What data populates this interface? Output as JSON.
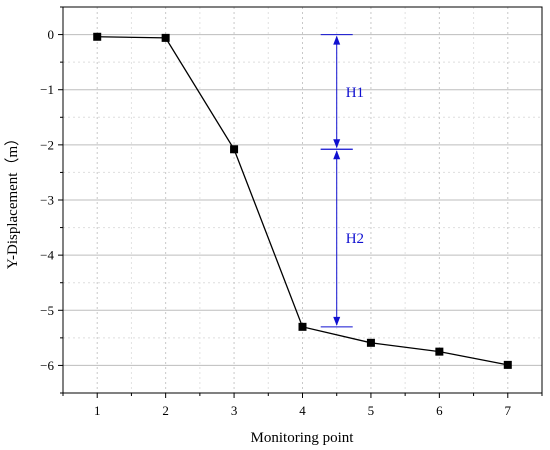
{
  "chart_data": {
    "type": "line",
    "title": "",
    "xlabel": "Monitoring point",
    "ylabel": "Y-Displacement（m）",
    "xlim": [
      0.5,
      7.5
    ],
    "ylim": [
      -6.5,
      0.5
    ],
    "x_ticks": [
      1,
      2,
      3,
      4,
      5,
      6,
      7
    ],
    "y_ticks": [
      0,
      -1,
      -2,
      -3,
      -4,
      -5,
      -6
    ],
    "y_tick_labels": [
      "0",
      "−1",
      "−2",
      "−3",
      "−4",
      "−5",
      "−6"
    ],
    "grid": true,
    "series": [
      {
        "marker": "square",
        "color": "#000000",
        "x": [
          1,
          2,
          3,
          4,
          5,
          6,
          7
        ],
        "y": [
          -0.04,
          -0.06,
          -2.08,
          -5.3,
          -5.59,
          -5.75,
          -5.99
        ]
      }
    ],
    "annotations": [
      {
        "label": "H1",
        "x": 4.5,
        "y_top": 0.0,
        "y_bottom": -2.08,
        "color": "#1010d0"
      },
      {
        "label": "H2",
        "x": 4.5,
        "y_top": -2.08,
        "y_bottom": -5.3,
        "color": "#1010d0"
      }
    ]
  }
}
